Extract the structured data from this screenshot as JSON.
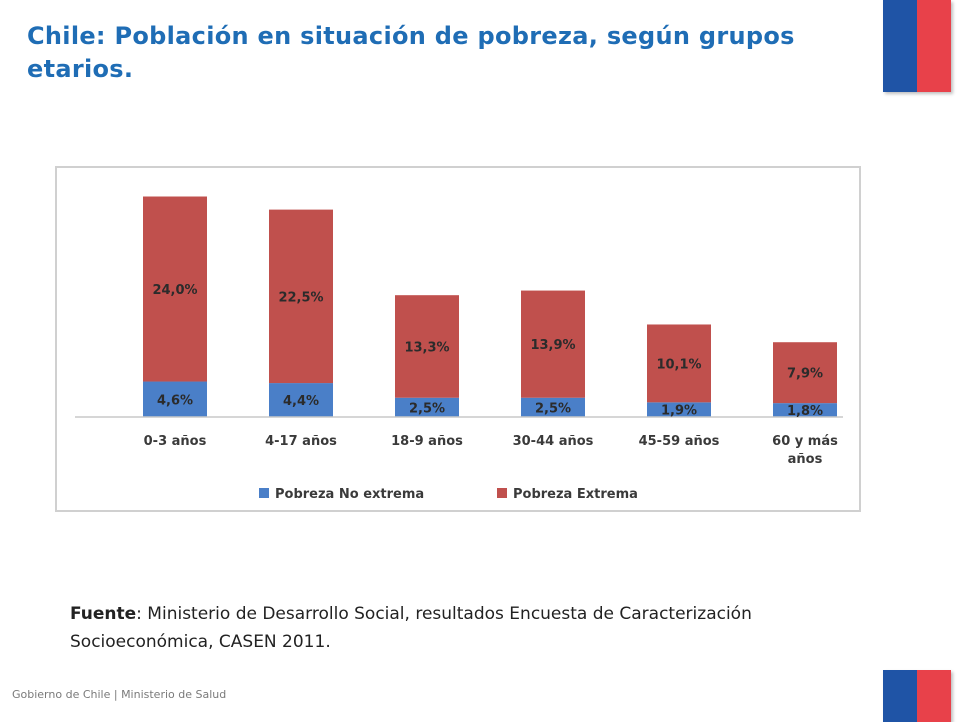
{
  "header": {
    "title": "Chile: Población en situación de pobreza, según grupos etarios."
  },
  "colors": {
    "accent": "#1f6db5",
    "flag_blue": "#1f54a6",
    "flag_red": "#e8414a",
    "series_blue": "#4a7fc8",
    "series_red": "#c0504d"
  },
  "chart_data": {
    "type": "bar",
    "stacked": true,
    "categories": [
      "0-3 años",
      "4-17 años",
      "18-9 años",
      "30-44 años",
      "45-59 años",
      "60 y más años"
    ],
    "category_lines": [
      [
        "0-3 años"
      ],
      [
        "4-17 años"
      ],
      [
        "18-9 años"
      ],
      [
        "30-44 años"
      ],
      [
        "45-59 años"
      ],
      [
        "60 y más",
        "años"
      ]
    ],
    "series": [
      {
        "name": "Pobreza No extrema",
        "color": "#4a7fc8",
        "values": [
          4.6,
          4.4,
          2.5,
          2.5,
          1.9,
          1.8
        ],
        "labels": [
          "4,6%",
          "4,4%",
          "2,5%",
          "2,5%",
          "1,9%",
          "1,8%"
        ]
      },
      {
        "name": "Pobreza Extrema",
        "color": "#c0504d",
        "values": [
          24.0,
          22.5,
          13.3,
          13.9,
          10.1,
          7.9
        ],
        "labels": [
          "24,0%",
          "22,5%",
          "13,3%",
          "13,9%",
          "10,1%",
          "7,9%"
        ]
      }
    ],
    "ylim": [
      0,
      31
    ],
    "grid": false,
    "legend_position": "bottom"
  },
  "source": {
    "label": "Fuente",
    "text": ": Ministerio de Desarrollo Social, resultados Encuesta de Caracterización Socioeconómica, CASEN 2011."
  },
  "footer": {
    "text": "Gobierno de Chile | Ministerio de Salud"
  }
}
